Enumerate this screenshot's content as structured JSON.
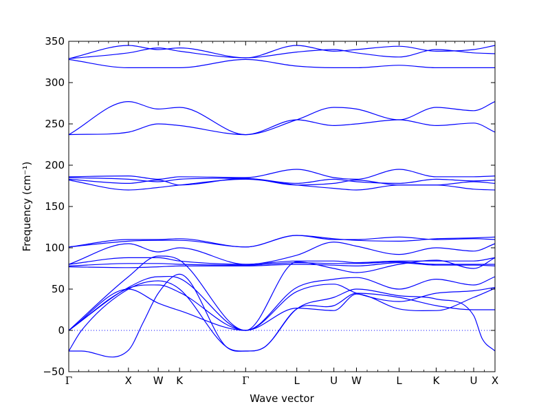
{
  "chart_data": {
    "type": "line",
    "xlabel": "Wave vector",
    "ylabel": "Frequency (cm⁻¹)",
    "ylim": [
      -50,
      350
    ],
    "yticks": [
      -50,
      0,
      50,
      100,
      150,
      200,
      250,
      300,
      350
    ],
    "xlim": [
      0,
      1
    ],
    "xticks": [
      {
        "pos": 0.0,
        "label": "Γ"
      },
      {
        "pos": 0.14,
        "label": "X"
      },
      {
        "pos": 0.21,
        "label": "W"
      },
      {
        "pos": 0.26,
        "label": "K"
      },
      {
        "pos": 0.415,
        "label": "Γ"
      },
      {
        "pos": 0.535,
        "label": "L"
      },
      {
        "pos": 0.622,
        "label": "U"
      },
      {
        "pos": 0.675,
        "label": "W"
      },
      {
        "pos": 0.775,
        "label": "L"
      },
      {
        "pos": 0.862,
        "label": "K"
      },
      {
        "pos": 0.95,
        "label": "U"
      },
      {
        "pos": 1.0,
        "label": "X"
      }
    ],
    "zero_line": {
      "y": 0,
      "style": "dotted",
      "color": "#0000ff"
    },
    "line_color": "#0000ff",
    "series": [
      {
        "x": [
          0,
          0.14,
          0.21,
          0.26,
          0.415,
          0.535,
          0.622,
          0.675,
          0.775,
          0.862,
          0.95,
          1.0
        ],
        "y": [
          329,
          345,
          340,
          342,
          330,
          345,
          338,
          340,
          344,
          338,
          340,
          345
        ]
      },
      {
        "x": [
          0,
          0.14,
          0.21,
          0.26,
          0.415,
          0.535,
          0.622,
          0.675,
          0.775,
          0.862,
          0.95,
          1.0
        ],
        "y": [
          329,
          336,
          342,
          338,
          330,
          337,
          340,
          336,
          331,
          340,
          336,
          335
        ]
      },
      {
        "x": [
          0,
          0.14,
          0.21,
          0.26,
          0.415,
          0.535,
          0.622,
          0.675,
          0.775,
          0.862,
          0.95,
          1.0
        ],
        "y": [
          328,
          318,
          318,
          318,
          328,
          320,
          318,
          318,
          321,
          318,
          318,
          318
        ]
      },
      {
        "x": [
          0,
          0.14,
          0.21,
          0.26,
          0.415,
          0.535,
          0.622,
          0.675,
          0.775,
          0.862,
          0.95,
          1.0
        ],
        "y": [
          237,
          277,
          268,
          270,
          237,
          255,
          270,
          268,
          255,
          270,
          266,
          277
        ]
      },
      {
        "x": [
          0,
          0.14,
          0.21,
          0.26,
          0.415,
          0.535,
          0.622,
          0.675,
          0.775,
          0.862,
          0.95,
          1.0
        ],
        "y": [
          237,
          240,
          250,
          248,
          237,
          255,
          248,
          250,
          255,
          248,
          251,
          240
        ]
      },
      {
        "x": [
          0,
          0.14,
          0.21,
          0.26,
          0.415,
          0.535,
          0.622,
          0.675,
          0.775,
          0.862,
          0.95,
          1.0
        ],
        "y": [
          186,
          187,
          183,
          186,
          185,
          195,
          185,
          183,
          195,
          186,
          186,
          187
        ]
      },
      {
        "x": [
          0,
          0.14,
          0.21,
          0.26,
          0.415,
          0.535,
          0.622,
          0.675,
          0.775,
          0.862,
          0.95,
          1.0
        ],
        "y": [
          185,
          183,
          180,
          183,
          184,
          178,
          183,
          180,
          178,
          183,
          181,
          182
        ]
      },
      {
        "x": [
          0,
          0.14,
          0.21,
          0.26,
          0.415,
          0.535,
          0.622,
          0.675,
          0.775,
          0.862,
          0.95,
          1.0
        ],
        "y": [
          183,
          178,
          182,
          176,
          184,
          176,
          178,
          182,
          176,
          176,
          180,
          178
        ]
      },
      {
        "x": [
          0,
          0.14,
          0.21,
          0.26,
          0.415,
          0.535,
          0.622,
          0.675,
          0.775,
          0.862,
          0.95,
          1.0
        ],
        "y": [
          182,
          170,
          173,
          176,
          183,
          176,
          172,
          170,
          176,
          176,
          171,
          170
        ]
      },
      {
        "x": [
          0,
          0.14,
          0.21,
          0.26,
          0.415,
          0.535,
          0.622,
          0.675,
          0.775,
          0.862,
          0.95,
          1.0
        ],
        "y": [
          101,
          110,
          110,
          111,
          101,
          115,
          110,
          110,
          113,
          110,
          111,
          110
        ]
      },
      {
        "x": [
          0,
          0.14,
          0.21,
          0.26,
          0.415,
          0.535,
          0.622,
          0.675,
          0.775,
          0.862,
          0.95,
          1.0
        ],
        "y": [
          101,
          108,
          109,
          109,
          101,
          115,
          111,
          109,
          108,
          111,
          112,
          113
        ]
      },
      {
        "x": [
          0,
          0.14,
          0.21,
          0.26,
          0.415,
          0.535,
          0.622,
          0.675,
          0.775,
          0.862,
          0.95,
          1.0
        ],
        "y": [
          80,
          105,
          95,
          100,
          80,
          91,
          107,
          102,
          92,
          100,
          96,
          105
        ]
      },
      {
        "x": [
          0,
          0.14,
          0.21,
          0.26,
          0.415,
          0.535,
          0.622,
          0.675,
          0.775,
          0.862,
          0.95,
          1.0
        ],
        "y": [
          80,
          88,
          88,
          84,
          80,
          84,
          84,
          82,
          84,
          84,
          84,
          88
        ]
      },
      {
        "x": [
          0,
          0.14,
          0.21,
          0.26,
          0.415,
          0.535,
          0.622,
          0.675,
          0.775,
          0.862,
          0.95,
          1.0
        ],
        "y": [
          78,
          81,
          81,
          80,
          79,
          82,
          81,
          81,
          83,
          80,
          80,
          80
        ]
      },
      {
        "x": [
          0,
          0.14,
          0.21,
          0.26,
          0.415,
          0.535,
          0.622,
          0.675,
          0.775,
          0.862,
          0.95,
          1.0
        ],
        "y": [
          77,
          76,
          77,
          78,
          78,
          80,
          79,
          78,
          82,
          79,
          79,
          78
        ]
      },
      {
        "x": [
          0,
          0.14,
          0.21,
          0.26,
          0.415,
          0.535,
          0.622,
          0.675,
          0.775,
          0.862,
          0.95,
          1.0
        ],
        "y": [
          0,
          65,
          90,
          85,
          0,
          83,
          75,
          70,
          80,
          85,
          75,
          88
        ]
      },
      {
        "x": [
          0,
          0.14,
          0.21,
          0.26,
          0.415,
          0.535,
          0.622,
          0.675,
          0.775,
          0.862,
          0.95,
          1.0
        ],
        "y": [
          0,
          52,
          65,
          63,
          0,
          52,
          62,
          64,
          50,
          62,
          55,
          65
        ]
      },
      {
        "x": [
          0,
          0.14,
          0.21,
          0.26,
          0.415,
          0.535,
          0.622,
          0.675,
          0.775,
          0.862,
          0.95,
          1.0
        ],
        "y": [
          0,
          51,
          55,
          46,
          0,
          47,
          56,
          45,
          35,
          45,
          48,
          52
        ]
      },
      {
        "x": [
          0,
          0.14,
          0.21,
          0.26,
          0.415,
          0.535,
          0.622,
          0.675,
          0.775,
          0.862,
          0.95,
          1.0
        ],
        "y": [
          0,
          50,
          33,
          24,
          0,
          27,
          24,
          44,
          26,
          24,
          40,
          51
        ]
      },
      {
        "x": [
          0,
          0.03,
          0.14,
          0.175,
          0.21,
          0.26,
          0.37,
          0.415,
          0.46,
          0.535,
          0.622,
          0.675,
          0.775,
          0.862,
          0.95,
          0.97,
          1.0
        ],
        "y": [
          -25,
          -25,
          -24,
          10,
          45,
          68,
          -20,
          -25,
          -20,
          26,
          40,
          50,
          42,
          38,
          18,
          -10,
          -25
        ]
      },
      {
        "x": [
          0,
          0.03,
          0.14,
          0.21,
          0.26,
          0.37,
          0.415,
          0.46,
          0.535,
          0.622,
          0.675,
          0.775,
          0.862,
          0.95,
          1.0
        ],
        "y": [
          -25,
          0,
          50,
          60,
          50,
          -20,
          -25,
          -20,
          26,
          30,
          45,
          40,
          30,
          25,
          25
        ]
      }
    ]
  }
}
